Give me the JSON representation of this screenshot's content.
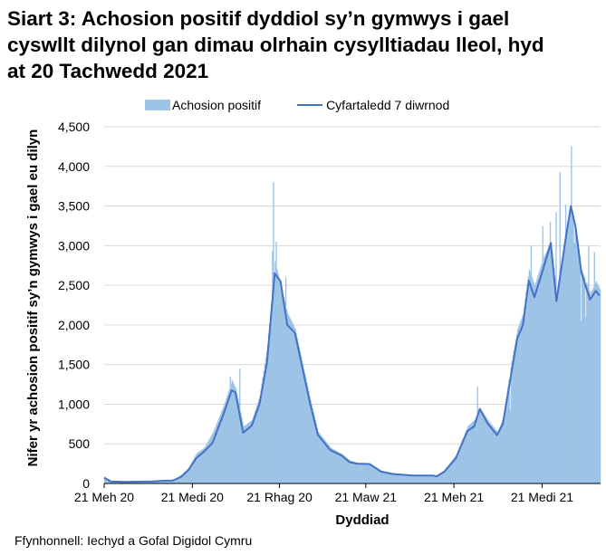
{
  "title_lines": [
    "Siart 3: Achosion positif dyddiol sy’n gymwys i gael",
    "cyswllt dilynol gan dimau olrhain cysylltiadau lleol, hyd",
    "at 20 Tachwedd 2021"
  ],
  "source": "Ffynhonnell: Iechyd a Gofal Digidol Cymru",
  "chart_data": {
    "type": "bar+line",
    "title": "Siart 3: Achosion positif dyddiol sy’n gymwys i gael cyswllt dilynol gan dimau olrhain cysylltiadau lleol, hyd at 20 Tachwedd 2021",
    "xlabel": "Dyddiad",
    "ylabel": "Nifer yr achosion positif sy’n gymwys i gael eu dilyn",
    "ylim": [
      0,
      4500
    ],
    "yticks": [
      0,
      500,
      1000,
      1500,
      2000,
      2500,
      3000,
      3500,
      4000,
      4500
    ],
    "ytick_labels": [
      "0",
      "500",
      "1,000",
      "1,500",
      "2,000",
      "2,500",
      "3,000",
      "3,500",
      "4,000",
      "4,500"
    ],
    "xlim": [
      "2020-06-21",
      "2021-11-21"
    ],
    "xticks": [
      "2020-06-21",
      "2020-09-21",
      "2020-12-21",
      "2021-03-21",
      "2021-06-21",
      "2021-09-21"
    ],
    "xtick_labels": [
      "21 Meh 20",
      "21 Medi 20",
      "21 Rhag 20",
      "21 Maw 21",
      "21 Meh 21",
      "21 Medi 21"
    ],
    "grid": "horizontal",
    "legend": "top",
    "colors": {
      "bars": "#9dc3e6",
      "line": "#4472c4"
    },
    "series": [
      {
        "name": "Achosion positif",
        "type": "bar",
        "envelope": [
          [
            "2020-06-21",
            90
          ],
          [
            "2020-06-28",
            30
          ],
          [
            "2020-07-11",
            22
          ],
          [
            "2020-08-10",
            28
          ],
          [
            "2020-08-25",
            40
          ],
          [
            "2020-08-31",
            40
          ],
          [
            "2020-09-09",
            110
          ],
          [
            "2020-09-17",
            200
          ],
          [
            "2020-09-25",
            380
          ],
          [
            "2020-10-03",
            450
          ],
          [
            "2020-10-12",
            640
          ],
          [
            "2020-10-24",
            1000
          ],
          [
            "2020-11-01",
            1300
          ],
          [
            "2020-11-05",
            1200
          ],
          [
            "2020-11-13",
            720
          ],
          [
            "2020-11-22",
            800
          ],
          [
            "2020-11-30",
            1100
          ],
          [
            "2020-12-08",
            1750
          ],
          [
            "2020-12-16",
            2800
          ],
          [
            "2020-12-22",
            2500
          ],
          [
            "2020-12-29",
            2150
          ],
          [
            "2021-01-06",
            1950
          ],
          [
            "2021-01-14",
            1500
          ],
          [
            "2021-01-22",
            1050
          ],
          [
            "2021-01-30",
            650
          ],
          [
            "2021-02-12",
            450
          ],
          [
            "2021-02-24",
            370
          ],
          [
            "2021-03-04",
            290
          ],
          [
            "2021-03-12",
            260
          ],
          [
            "2021-03-25",
            250
          ],
          [
            "2021-04-06",
            160
          ],
          [
            "2021-04-18",
            130
          ],
          [
            "2021-05-09",
            110
          ],
          [
            "2021-05-30",
            105
          ],
          [
            "2021-06-03",
            100
          ],
          [
            "2021-06-11",
            170
          ],
          [
            "2021-06-23",
            360
          ],
          [
            "2021-07-05",
            720
          ],
          [
            "2021-07-12",
            800
          ],
          [
            "2021-07-18",
            950
          ],
          [
            "2021-07-26",
            800
          ],
          [
            "2021-08-05",
            650
          ],
          [
            "2021-08-11",
            820
          ],
          [
            "2021-08-20",
            1550
          ],
          [
            "2021-08-26",
            1950
          ],
          [
            "2021-09-01",
            2150
          ],
          [
            "2021-09-07",
            2700
          ],
          [
            "2021-09-13",
            2500
          ],
          [
            "2021-09-22",
            2850
          ],
          [
            "2021-09-30",
            3050
          ],
          [
            "2021-10-06",
            2400
          ],
          [
            "2021-10-16",
            3200
          ],
          [
            "2021-10-21",
            3500
          ],
          [
            "2021-10-26",
            3200
          ],
          [
            "2021-11-01",
            2700
          ],
          [
            "2021-11-10",
            2400
          ],
          [
            "2021-11-16",
            2550
          ],
          [
            "2021-11-20",
            2450
          ]
        ],
        "spikes": [
          [
            "2020-10-30",
            1350
          ],
          [
            "2020-11-09",
            1450
          ],
          [
            "2020-12-13",
            2930
          ],
          [
            "2020-12-14",
            3800
          ],
          [
            "2020-12-17",
            3050
          ],
          [
            "2020-12-27",
            2600
          ],
          [
            "2021-07-15",
            1220
          ],
          [
            "2021-08-18",
            930
          ],
          [
            "2021-09-09",
            3000
          ],
          [
            "2021-09-21",
            3250
          ],
          [
            "2021-09-29",
            3300
          ],
          [
            "2021-10-05",
            3420
          ],
          [
            "2021-10-09",
            3930
          ],
          [
            "2021-10-15",
            3520
          ],
          [
            "2021-10-21",
            4250
          ],
          [
            "2021-10-24",
            3030
          ],
          [
            "2021-11-08",
            3000
          ],
          [
            "2021-11-14",
            2920
          ],
          [
            "2021-10-31",
            2050
          ],
          [
            "2021-11-05",
            2100
          ]
        ]
      },
      {
        "name": "Cyfartaledd 7 diwrnod",
        "type": "line",
        "points": [
          [
            "2020-06-21",
            70
          ],
          [
            "2020-06-28",
            25
          ],
          [
            "2020-07-11",
            20
          ],
          [
            "2020-08-10",
            25
          ],
          [
            "2020-08-25",
            35
          ],
          [
            "2020-08-31",
            35
          ],
          [
            "2020-09-09",
            80
          ],
          [
            "2020-09-17",
            170
          ],
          [
            "2020-09-25",
            320
          ],
          [
            "2020-10-03",
            400
          ],
          [
            "2020-10-12",
            510
          ],
          [
            "2020-10-24",
            890
          ],
          [
            "2020-11-01",
            1175
          ],
          [
            "2020-11-05",
            1150
          ],
          [
            "2020-11-13",
            640
          ],
          [
            "2020-11-22",
            730
          ],
          [
            "2020-11-30",
            1000
          ],
          [
            "2020-12-08",
            1530
          ],
          [
            "2020-12-16",
            2650
          ],
          [
            "2020-12-22",
            2550
          ],
          [
            "2020-12-29",
            2000
          ],
          [
            "2021-01-06",
            1900
          ],
          [
            "2021-01-14",
            1450
          ],
          [
            "2021-01-22",
            1000
          ],
          [
            "2021-01-30",
            615
          ],
          [
            "2021-02-12",
            420
          ],
          [
            "2021-02-24",
            350
          ],
          [
            "2021-03-04",
            270
          ],
          [
            "2021-03-12",
            250
          ],
          [
            "2021-03-25",
            245
          ],
          [
            "2021-04-06",
            150
          ],
          [
            "2021-04-18",
            120
          ],
          [
            "2021-05-09",
            100
          ],
          [
            "2021-05-30",
            100
          ],
          [
            "2021-06-03",
            90
          ],
          [
            "2021-06-11",
            150
          ],
          [
            "2021-06-23",
            320
          ],
          [
            "2021-07-05",
            660
          ],
          [
            "2021-07-12",
            720
          ],
          [
            "2021-07-18",
            940
          ],
          [
            "2021-07-26",
            760
          ],
          [
            "2021-08-05",
            610
          ],
          [
            "2021-08-11",
            750
          ],
          [
            "2021-08-20",
            1400
          ],
          [
            "2021-08-26",
            1830
          ],
          [
            "2021-09-01",
            2000
          ],
          [
            "2021-09-07",
            2560
          ],
          [
            "2021-09-13",
            2350
          ],
          [
            "2021-09-22",
            2700
          ],
          [
            "2021-09-30",
            3030
          ],
          [
            "2021-10-06",
            2300
          ],
          [
            "2021-10-16",
            3120
          ],
          [
            "2021-10-21",
            3500
          ],
          [
            "2021-10-26",
            3230
          ],
          [
            "2021-11-01",
            2660
          ],
          [
            "2021-11-10",
            2320
          ],
          [
            "2021-11-16",
            2430
          ],
          [
            "2021-11-20",
            2370
          ]
        ]
      }
    ]
  }
}
